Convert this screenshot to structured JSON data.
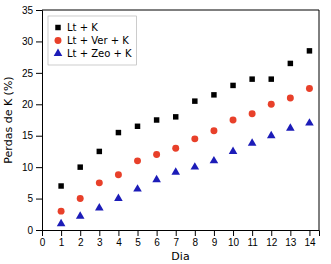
{
  "chart_data": {
    "type": "scatter",
    "x": [
      1,
      2,
      3,
      4,
      5,
      6,
      7,
      8,
      9,
      10,
      11,
      12,
      13,
      14
    ],
    "series": [
      {
        "name": "Lt + K",
        "color": "#000000",
        "marker": "square",
        "values": [
          7.0,
          10.0,
          12.5,
          15.5,
          16.5,
          17.5,
          18.0,
          20.5,
          21.5,
          23.0,
          24.0,
          24.0,
          26.5,
          28.5
        ]
      },
      {
        "name": "Lt + Ver + K",
        "color": "#e8402a",
        "marker": "circle",
        "values": [
          3.0,
          5.0,
          7.5,
          8.8,
          11.0,
          12.0,
          13.0,
          14.5,
          15.8,
          17.5,
          18.5,
          20.0,
          21.0,
          22.5
        ]
      },
      {
        "name": "Lt + Zeo + K",
        "color": "#1c1cb8",
        "marker": "triangle",
        "values": [
          1.0,
          2.2,
          3.5,
          5.0,
          6.5,
          8.0,
          9.2,
          10.0,
          11.0,
          12.5,
          13.8,
          15.0,
          16.2,
          17.0
        ]
      }
    ],
    "xlabel": "Dia",
    "ylabel": "Perdas de K (%)",
    "xlim": [
      0,
      14.5
    ],
    "ylim": [
      0,
      35
    ],
    "xticks": [
      0,
      1,
      2,
      3,
      4,
      5,
      6,
      7,
      8,
      9,
      10,
      11,
      12,
      13,
      14
    ],
    "yticks": [
      0,
      5,
      10,
      15,
      20,
      25,
      30,
      35
    ],
    "legend": "upper left"
  }
}
